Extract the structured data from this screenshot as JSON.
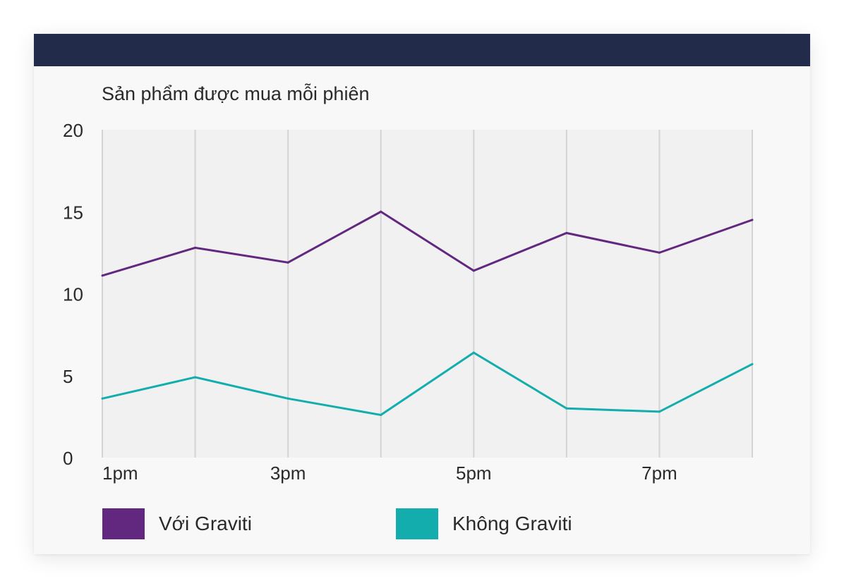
{
  "colors": {
    "header": "#222b49",
    "plot_bg": "#f1f1f1",
    "grid": "#d4d4d4",
    "series_with": "#62287f",
    "series_without": "#14adad"
  },
  "chart_data": {
    "type": "line",
    "title": "Sản phẩm được mua mỗi phiên",
    "x": [
      1,
      2,
      3,
      4,
      5,
      6,
      7,
      8
    ],
    "x_tick_labels": [
      "1pm",
      "",
      "3pm",
      "",
      "5pm",
      "",
      "7pm",
      ""
    ],
    "ylim": [
      0,
      20
    ],
    "y_ticks": [
      0,
      5,
      10,
      15,
      20
    ],
    "y_tick_labels": [
      "0",
      "5",
      "10",
      "15",
      "20"
    ],
    "grid": "vertical",
    "legend_position": "bottom-left",
    "series": [
      {
        "name": "Với Graviti",
        "color": "#62287f",
        "values": [
          11.1,
          12.8,
          11.9,
          15.0,
          11.4,
          13.7,
          12.5,
          14.5
        ]
      },
      {
        "name": "Không Graviti",
        "color": "#14adad",
        "values": [
          3.6,
          4.9,
          3.6,
          2.6,
          6.4,
          3.0,
          2.8,
          5.7
        ]
      }
    ]
  }
}
